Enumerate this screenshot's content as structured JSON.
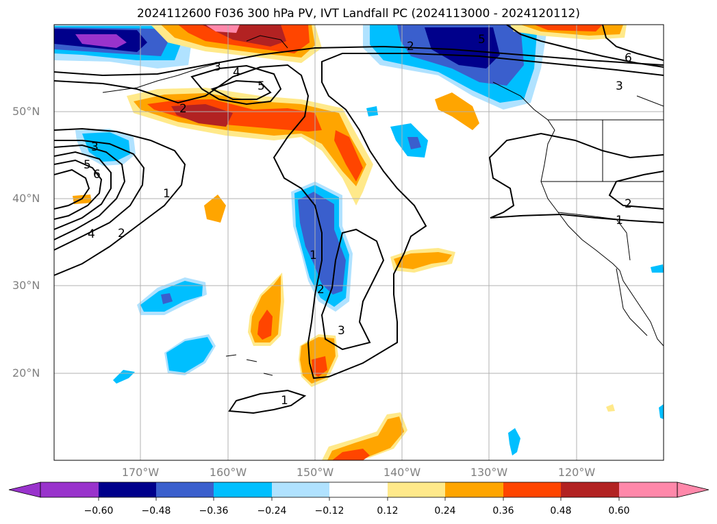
{
  "title": "2024112600 F036 300 hPa PV, IVT Landfall PC (2024113000 - 2024120112)",
  "lat_labels": [
    "50°N",
    "40°N",
    "30°N",
    "20°N"
  ],
  "lon_labels": [
    "170°W",
    "160°W",
    "150°W",
    "140°W",
    "130°W",
    "120°W"
  ],
  "colorbar": {
    "ticks": [
      "−0.60",
      "−0.48",
      "−0.36",
      "−0.24",
      "−0.12",
      "0.12",
      "0.24",
      "0.36",
      "0.48",
      "0.60"
    ],
    "colors": [
      "#9933cc",
      "#00008b",
      "#3a5fcd",
      "#00bfff",
      "#b0e2ff",
      "#ffffff",
      "#ffe98a",
      "#ffa500",
      "#ff4500",
      "#b22222",
      "#ff88aa"
    ]
  },
  "contour_labels": [
    "3",
    "4",
    "5",
    "2",
    "3",
    "5",
    "6",
    "1",
    "4",
    "2",
    "2",
    "5",
    "6",
    "3",
    "1",
    "2",
    "3",
    "2",
    "1",
    "1"
  ],
  "colors": {
    "negative": "#00bfff",
    "positive": "#ffa500",
    "contour": "#000000",
    "grid": "#b0b0b0"
  }
}
